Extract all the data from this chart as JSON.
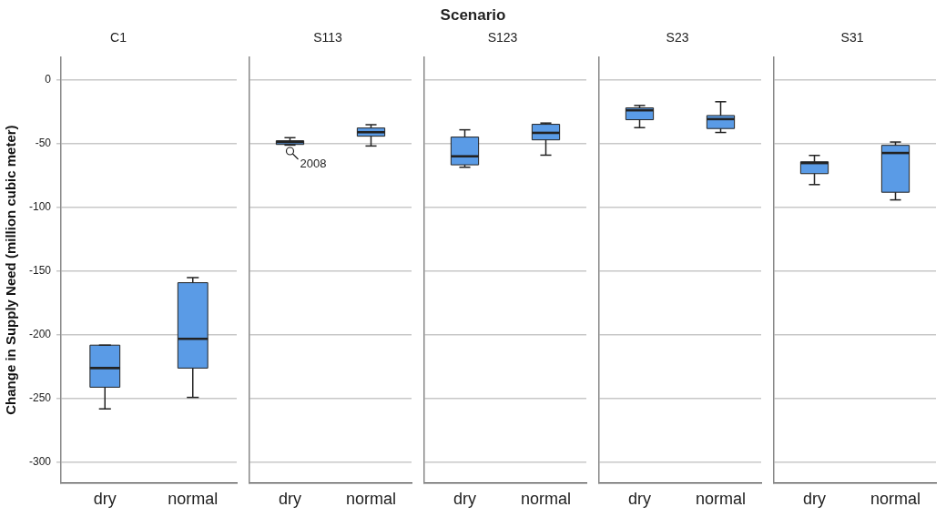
{
  "chart_data": [
    {
      "type": "box",
      "title": "C1",
      "ylabel": "Change in Supply Need (million cubic meter)",
      "annotations": [
        "Scenario"
      ],
      "categories": [
        "dry",
        "normal"
      ],
      "ylim": [
        -316,
        18
      ],
      "yticks": [
        0,
        -50,
        -100,
        -150,
        -200,
        -250,
        -300
      ],
      "grid": "y",
      "series": [
        {
          "color": "#5a9be6",
          "boxes": [
            {
              "low": -258,
              "q1": -241,
              "median": -226,
              "q3": -208,
              "high": -208
            },
            {
              "low": -249,
              "q1": -226,
              "median": -203,
              "q3": -159,
              "high": -155
            }
          ]
        }
      ]
    },
    {
      "type": "box",
      "title": "S113",
      "annotations": [
        "2008"
      ],
      "categories": [
        "dry",
        "normal"
      ],
      "ylim": [
        -316,
        18
      ],
      "yticks": [
        0,
        -50,
        -100,
        -150,
        -200,
        -250,
        -300
      ],
      "grid": "y",
      "tick_labels": "x",
      "series": [
        {
          "color": "#5a9be6",
          "boxes": [
            {
              "low": -51,
              "q1": -50.5,
              "median": -48.6,
              "q3": -47.6,
              "high": -45.2,
              "outliers": [
                -55.7
              ]
            },
            {
              "low": -51.7,
              "q1": -44,
              "median": -40.9,
              "q3": -37.6,
              "high": -35
            }
          ]
        }
      ]
    },
    {
      "type": "box",
      "title": "S123",
      "categories": [
        "dry",
        "normal"
      ],
      "ylim": [
        -316,
        18
      ],
      "yticks": [
        0,
        -50,
        -100,
        -150,
        -200,
        -250,
        -300
      ],
      "grid": "y",
      "tick_labels": "x",
      "series": [
        {
          "color": "#5a9be6",
          "boxes": [
            {
              "low": -68.4,
              "q1": -66.5,
              "median": -59.8,
              "q3": -44.7,
              "high": -39
            },
            {
              "low": -58.9,
              "q1": -46.9,
              "median": -41.4,
              "q3": -34.7,
              "high": -33.7
            }
          ]
        }
      ]
    },
    {
      "type": "box",
      "title": "S23",
      "categories": [
        "dry",
        "normal"
      ],
      "ylim": [
        -316,
        18
      ],
      "yticks": [
        0,
        -50,
        -100,
        -150,
        -200,
        -250,
        -300
      ],
      "grid": "y",
      "tick_labels": "x",
      "series": [
        {
          "color": "#5a9be6",
          "boxes": [
            {
              "low": -37.3,
              "q1": -31.1,
              "median": -23.7,
              "q3": -21.8,
              "high": -19.9
            },
            {
              "low": -41.1,
              "q1": -38,
              "median": -30.6,
              "q3": -27.8,
              "high": -17
            }
          ]
        }
      ]
    },
    {
      "type": "box",
      "title": "S31",
      "categories": [
        "dry",
        "normal"
      ],
      "ylim": [
        -316,
        18
      ],
      "yticks": [
        0,
        -50,
        -100,
        -150,
        -200,
        -250,
        -300
      ],
      "grid": "y",
      "tick_labels": "x",
      "series": [
        {
          "color": "#5a9be6",
          "boxes": [
            {
              "low": -82,
              "q1": -73.4,
              "median": -65.1,
              "q3": -64.1,
              "high": -59.1
            },
            {
              "low": -94,
              "q1": -88,
              "median": -57.2,
              "q3": -51.2,
              "high": -48.6
            }
          ]
        }
      ]
    }
  ]
}
